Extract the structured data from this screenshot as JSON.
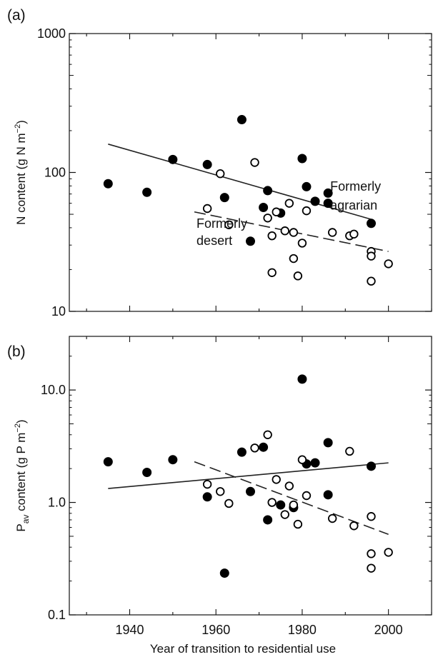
{
  "figure": {
    "xlabel": "Year of transition to residential use"
  },
  "chart_data": [
    {
      "type": "scatter",
      "panel_label": "(a)",
      "ylabel": "N content (g N m−2)",
      "ylabel_parts": {
        "main": "N content (g N m",
        "exponent": "−2",
        "close": ")"
      },
      "y_scale": "log",
      "ylim": [
        10,
        1000
      ],
      "xlim": [
        1926,
        2010
      ],
      "x_ticks": [
        1940,
        1960,
        1980,
        2000
      ],
      "y_ticks": [
        {
          "value": 10,
          "label": "10"
        },
        {
          "value": 100,
          "label": "100"
        },
        {
          "value": 1000,
          "label": "1000"
        }
      ],
      "annotations": [
        {
          "text": "Formerly",
          "x": 1986.5,
          "y": 74
        },
        {
          "text": "agrarian",
          "x": 1986.5,
          "y": 54
        },
        {
          "text": "Formerly",
          "x": 1955.5,
          "y": 40
        },
        {
          "text": "desert",
          "x": 1955.5,
          "y": 30
        }
      ],
      "series": [
        {
          "marker": "filled-circle",
          "points": [
            [
              1935,
              83
            ],
            [
              1944,
              72
            ],
            [
              1950,
              124
            ],
            [
              1958,
              114
            ],
            [
              1962,
              66
            ],
            [
              1966,
              240
            ],
            [
              1968,
              32
            ],
            [
              1971,
              56
            ],
            [
              1972,
              74
            ],
            [
              1975,
              51
            ],
            [
              1980,
              126
            ],
            [
              1981,
              79
            ],
            [
              1983,
              62
            ],
            [
              1986,
              71
            ],
            [
              1986,
              60
            ],
            [
              1996,
              43
            ]
          ],
          "trend": {
            "style": "solid",
            "x": [
              1935,
              1996
            ],
            "y": [
              160,
              46
            ]
          }
        },
        {
          "marker": "open-circle",
          "points": [
            [
              1958,
              55
            ],
            [
              1961,
              98
            ],
            [
              1963,
              42
            ],
            [
              1969,
              118
            ],
            [
              1972,
              47
            ],
            [
              1973,
              35
            ],
            [
              1973,
              19
            ],
            [
              1974,
              52
            ],
            [
              1976,
              38
            ],
            [
              1977,
              60
            ],
            [
              1978,
              37
            ],
            [
              1978,
              24
            ],
            [
              1979,
              18
            ],
            [
              1980,
              31
            ],
            [
              1981,
              53
            ],
            [
              1987,
              37
            ],
            [
              1991,
              35
            ],
            [
              1992,
              36
            ],
            [
              1996,
              27
            ],
            [
              1996,
              25
            ],
            [
              1996,
              16.5
            ],
            [
              2000,
              22
            ]
          ],
          "trend": {
            "style": "dashed",
            "x": [
              1955,
              2000
            ],
            "y": [
              52,
              27
            ]
          }
        }
      ]
    },
    {
      "type": "scatter",
      "panel_label": "(b)",
      "ylabel": "Pav content (g P m−2)",
      "ylabel_parts": {
        "main": "P",
        "subscript": "av",
        "rest": " content (g P m",
        "exponent": "−2",
        "close": ")"
      },
      "y_scale": "log",
      "ylim": [
        0.1,
        30
      ],
      "xlim": [
        1926,
        2010
      ],
      "x_ticks": [
        1940,
        1960,
        1980,
        2000
      ],
      "y_ticks": [
        {
          "value": 0.1,
          "label": "0.1"
        },
        {
          "value": 1,
          "label": "1.0"
        },
        {
          "value": 10,
          "label": "10.0"
        }
      ],
      "annotations": [],
      "series": [
        {
          "marker": "filled-circle",
          "points": [
            [
              1935,
              2.3
            ],
            [
              1944,
              1.85
            ],
            [
              1950,
              2.4
            ],
            [
              1958,
              1.12
            ],
            [
              1962,
              0.235
            ],
            [
              1966,
              2.8
            ],
            [
              1968,
              1.25
            ],
            [
              1971,
              3.1
            ],
            [
              1972,
              0.7
            ],
            [
              1975,
              0.95
            ],
            [
              1978,
              0.9
            ],
            [
              1980,
              12.5
            ],
            [
              1981,
              2.2
            ],
            [
              1983,
              2.25
            ],
            [
              1986,
              3.4
            ],
            [
              1986,
              1.17
            ],
            [
              1996,
              2.1
            ]
          ],
          "trend": {
            "style": "solid",
            "x": [
              1935,
              2000
            ],
            "y": [
              1.33,
              2.25
            ]
          }
        },
        {
          "marker": "open-circle",
          "points": [
            [
              1958,
              1.45
            ],
            [
              1961,
              1.25
            ],
            [
              1963,
              0.98
            ],
            [
              1969,
              3.05
            ],
            [
              1972,
              4.0
            ],
            [
              1973,
              1.0
            ],
            [
              1974,
              1.6
            ],
            [
              1976,
              0.78
            ],
            [
              1977,
              1.4
            ],
            [
              1978,
              0.95
            ],
            [
              1979,
              0.64
            ],
            [
              1980,
              2.4
            ],
            [
              1981,
              1.15
            ],
            [
              1987,
              0.72
            ],
            [
              1991,
              2.85
            ],
            [
              1992,
              0.62
            ],
            [
              1996,
              0.75
            ],
            [
              1996,
              0.35
            ],
            [
              1996,
              0.26
            ],
            [
              2000,
              0.36
            ]
          ],
          "trend": {
            "style": "dashed",
            "x": [
              1955,
              2000
            ],
            "y": [
              2.3,
              0.52
            ]
          }
        }
      ]
    }
  ]
}
